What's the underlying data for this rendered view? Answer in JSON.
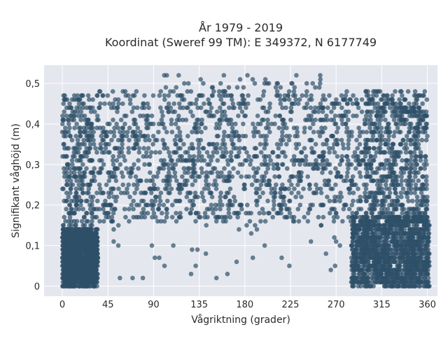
{
  "chart_data": {
    "type": "scatter",
    "title": "År 1979 - 2019",
    "subtitle": "Koordinat (Sweref 99 TM): E 349372, N 6177749",
    "xlabel": "Vågriktning (grader)",
    "ylabel": "Signifikant våghöjd (m)",
    "xlim": [
      -18,
      370
    ],
    "ylim": [
      -0.025,
      0.545
    ],
    "x_ticks": [
      0,
      45,
      90,
      135,
      180,
      225,
      270,
      315,
      360
    ],
    "x_tick_labels": [
      "0",
      "45",
      "90",
      "135",
      "180",
      "225",
      "270",
      "315",
      "360"
    ],
    "y_ticks": [
      0,
      0.1,
      0.2,
      0.3,
      0.4,
      0.5
    ],
    "y_tick_labels": [
      "0",
      "0,1",
      "0,2",
      "0,3",
      "0,4",
      "0,5"
    ],
    "grid": true,
    "legend": "none",
    "marker_color": "#2e5068",
    "background_color": "#e5e7ef",
    "point_clusters": [
      {
        "x_range": [
          30,
          298
        ],
        "y_range": [
          0.16,
          0.48
        ],
        "density": "very high"
      },
      {
        "x_range": [
          0,
          30
        ],
        "y_range": [
          0.14,
          0.47
        ],
        "density": "medium"
      },
      {
        "x_range": [
          298,
          360
        ],
        "y_range": [
          0.16,
          0.48
        ],
        "density": "high"
      },
      {
        "x_range": [
          0,
          35
        ],
        "y_range": [
          0.0,
          0.14
        ],
        "density": "very high"
      },
      {
        "x_range": [
          285,
          362
        ],
        "y_range": [
          0.0,
          0.17
        ],
        "density": "very high"
      },
      {
        "x_range": [
          30,
          290
        ],
        "y_range": [
          0.02,
          0.17
        ],
        "density": "sparse"
      },
      {
        "x_range": [
          100,
          270
        ],
        "y_range": [
          0.48,
          0.52
        ],
        "density": "sparse"
      }
    ]
  }
}
